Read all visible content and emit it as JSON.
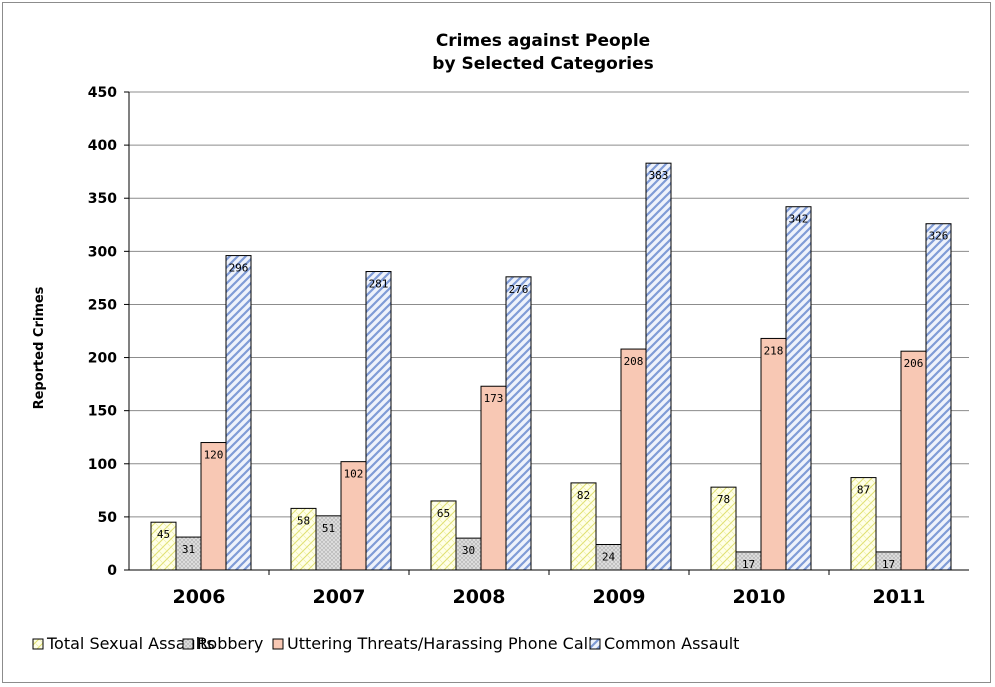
{
  "chart_data": {
    "type": "bar",
    "title": "Crimes against People",
    "subtitle": "by Selected Categories",
    "xlabel": "",
    "ylabel": "Reported Crimes",
    "ylim": [
      0,
      450
    ],
    "yticks": [
      0,
      50,
      100,
      150,
      200,
      250,
      300,
      350,
      400,
      450
    ],
    "grid": true,
    "legend_position": "bottom",
    "categories": [
      "2006",
      "2007",
      "2008",
      "2009",
      "2010",
      "2011"
    ],
    "series": [
      {
        "name": "Total Sexual Assaults",
        "values": [
          45,
          58,
          65,
          82,
          78,
          87
        ],
        "color": "#ffffe0",
        "pattern": "yellow-cross"
      },
      {
        "name": "Robbery",
        "values": [
          31,
          51,
          30,
          24,
          17,
          17
        ],
        "color": "#d3d3d3",
        "pattern": "gray-dots"
      },
      {
        "name": "Uttering Threats/Harassing Phone Calls",
        "values": [
          120,
          102,
          173,
          208,
          218,
          206
        ],
        "color": "#f8c8b4",
        "pattern": "solid"
      },
      {
        "name": "Common Assault",
        "values": [
          296,
          281,
          276,
          383,
          342,
          326
        ],
        "color": "#dce4f6",
        "pattern": "blue-diagonal"
      }
    ]
  }
}
